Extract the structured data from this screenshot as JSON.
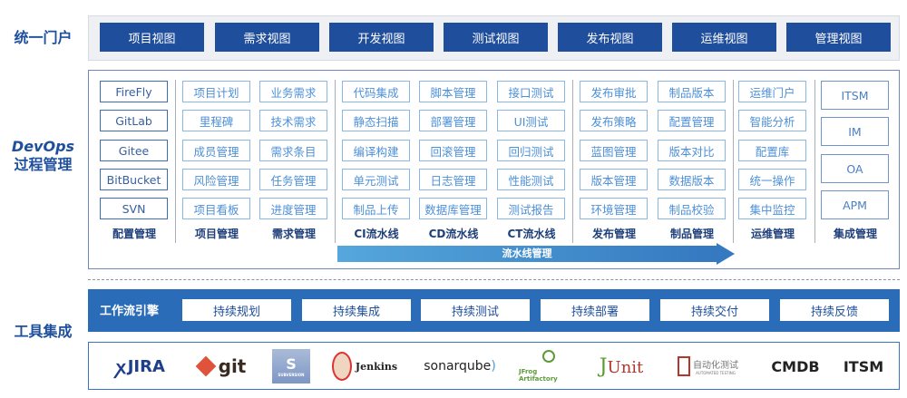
{
  "sections": {
    "portal": "统一门户",
    "devops_line1": "DevOps",
    "devops_line2": "过程管理",
    "tools": "工具集成"
  },
  "portal_views": [
    "项目视图",
    "需求视图",
    "开发视图",
    "测试视图",
    "发布视图",
    "运维视图",
    "管理视图"
  ],
  "columns": [
    {
      "label": "配置管理",
      "items": [
        "FireFly",
        "GitLab",
        "Gitee",
        "BitBucket",
        "SVN"
      ]
    },
    {
      "label": "项目管理",
      "items": [
        "项目计划",
        "里程碑",
        "成员管理",
        "风险管理",
        "项目看板"
      ]
    },
    {
      "label": "需求管理",
      "items": [
        "业务需求",
        "技术需求",
        "需求条目",
        "任务管理",
        "进度管理"
      ]
    },
    {
      "label": "CI流水线",
      "items": [
        "代码集成",
        "静态扫描",
        "编译构建",
        "单元测试",
        "制品上传"
      ]
    },
    {
      "label": "CD流水线",
      "items": [
        "脚本管理",
        "部署管理",
        "回滚管理",
        "日志管理",
        "数据库管理"
      ]
    },
    {
      "label": "CT流水线",
      "items": [
        "接口测试",
        "UI测试",
        "回归测试",
        "性能测试",
        "测试报告"
      ]
    },
    {
      "label": "发布管理",
      "items": [
        "发布审批",
        "发布策略",
        "蓝图管理",
        "版本管理",
        "环境管理"
      ]
    },
    {
      "label": "制品管理",
      "items": [
        "制品版本",
        "配置管理",
        "版本对比",
        "数据版本",
        "制品校验"
      ]
    },
    {
      "label": "运维管理",
      "items": [
        "运维门户",
        "智能分析",
        "配置库",
        "统一操作",
        "集中监控"
      ]
    }
  ],
  "integration": {
    "label": "集成管理",
    "items": [
      "ITSM",
      "IM",
      "OA",
      "APM"
    ]
  },
  "pipeline_arrow": "流水线管理",
  "workflow": {
    "label": "工作流引擎",
    "items": [
      "持续规划",
      "持续集成",
      "持续测试",
      "持续部署",
      "持续交付",
      "持续反馈"
    ]
  },
  "tool_logos": [
    "JIRA",
    "git",
    "SUBVERSION",
    "Jenkins",
    "sonarqube",
    "JFrog Artifactory",
    "JUnit",
    "自动化测试",
    "CMDB",
    "ITSM"
  ],
  "tool_logo_sub": "AUTOMATED TESTING",
  "colors": {
    "primary": "#1f4e9c",
    "accent": "#4d90d8",
    "workflow": "#2b6cb8"
  }
}
